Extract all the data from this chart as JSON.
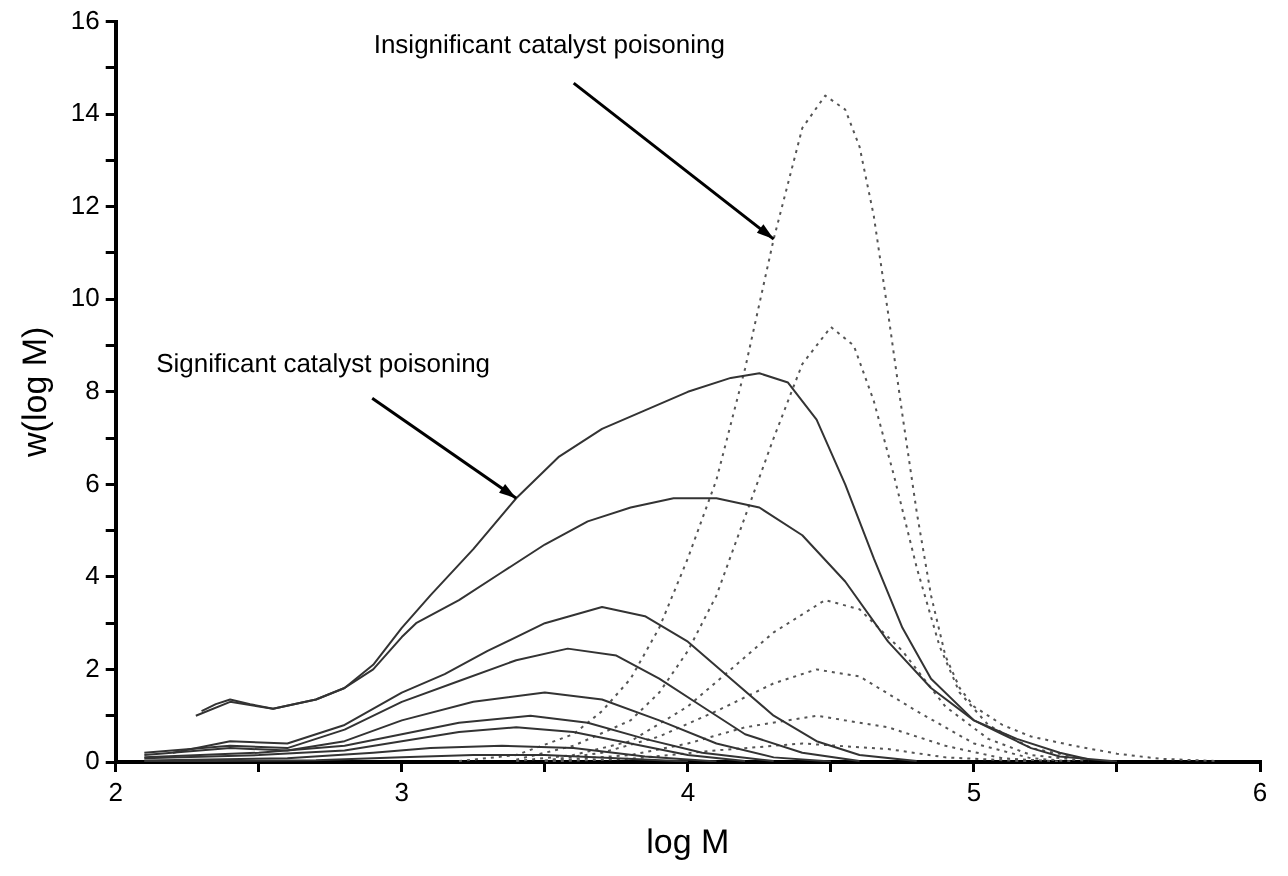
{
  "chart_data": {
    "type": "line",
    "xlabel": "log M",
    "ylabel": "w(log M)",
    "xlim": [
      2,
      6
    ],
    "xticks": [
      2,
      {
        "value": 2.5,
        "label": null
      },
      3,
      {
        "value": 3.5,
        "label": null
      },
      4,
      {
        "value": 4.5,
        "label": null
      },
      5,
      {
        "value": 5.5,
        "label": null
      },
      6
    ],
    "ylim": [
      0,
      16
    ],
    "yticks": [
      0,
      {
        "value": 1,
        "label": null
      },
      2,
      {
        "value": 3,
        "label": null
      },
      4,
      {
        "value": 5,
        "label": null
      },
      6,
      {
        "value": 7,
        "label": null
      },
      8,
      {
        "value": 9,
        "label": null
      },
      10,
      {
        "value": 11,
        "label": null
      },
      12,
      {
        "value": 13,
        "label": null
      },
      14,
      {
        "value": 15,
        "label": null
      },
      16
    ],
    "grid": false,
    "legend": false,
    "marker": "none",
    "annotations": [
      {
        "text": "Insignificant catalyst poisoning",
        "x": 4.3,
        "y": 11.3
      },
      {
        "text": "Significant catalyst poisoning",
        "x": 3.4,
        "y": 5.7
      }
    ],
    "series": [
      {
        "color": "#333333",
        "line_style": "solid",
        "x": [
          2.3,
          2.35,
          2.4,
          2.47,
          2.55,
          2.7,
          2.8,
          2.9,
          3.0,
          3.1,
          3.25,
          3.4,
          3.55,
          3.7,
          3.85,
          4.0,
          4.15,
          4.25,
          4.35,
          4.45,
          4.55,
          4.65,
          4.75,
          4.85,
          5.0,
          5.1,
          5.2,
          5.3,
          5.5
        ],
        "values": [
          1.1,
          1.25,
          1.35,
          1.25,
          1.15,
          1.35,
          1.6,
          2.1,
          2.9,
          3.6,
          4.6,
          5.7,
          6.6,
          7.2,
          7.6,
          8.0,
          8.3,
          8.4,
          8.2,
          7.4,
          6.0,
          4.4,
          2.9,
          1.8,
          0.9,
          0.6,
          0.3,
          0.12,
          0.01
        ]
      },
      {
        "color": "#333333",
        "line_style": "solid",
        "x": [
          2.28,
          2.4,
          2.55,
          2.7,
          2.8,
          2.9,
          3.0,
          3.05,
          3.2,
          3.35,
          3.5,
          3.65,
          3.8,
          3.95,
          4.1,
          4.25,
          4.4,
          4.55,
          4.7,
          4.85,
          5.0,
          5.15,
          5.3,
          5.4
        ],
        "values": [
          1.0,
          1.3,
          1.15,
          1.35,
          1.6,
          2.0,
          2.7,
          3.0,
          3.5,
          4.1,
          4.7,
          5.2,
          5.5,
          5.7,
          5.7,
          5.5,
          4.9,
          3.9,
          2.6,
          1.6,
          0.9,
          0.5,
          0.2,
          0.06
        ]
      },
      {
        "color": "#333333",
        "line_style": "solid",
        "x": [
          2.2,
          2.4,
          2.6,
          2.8,
          3.0,
          3.15,
          3.3,
          3.5,
          3.7,
          3.85,
          4.0,
          4.15,
          4.3,
          4.45,
          4.6,
          4.8
        ],
        "values": [
          0.2,
          0.45,
          0.4,
          0.8,
          1.5,
          1.9,
          2.4,
          3.0,
          3.35,
          3.15,
          2.6,
          1.8,
          1.0,
          0.45,
          0.15,
          0.02
        ]
      },
      {
        "color": "#333333",
        "line_style": "solid",
        "x": [
          2.1,
          2.4,
          2.6,
          2.8,
          3.0,
          3.2,
          3.4,
          3.58,
          3.75,
          3.9,
          4.05,
          4.2,
          4.4,
          4.6
        ],
        "values": [
          0.2,
          0.35,
          0.3,
          0.7,
          1.3,
          1.75,
          2.2,
          2.45,
          2.3,
          1.8,
          1.2,
          0.6,
          0.2,
          0.02
        ]
      },
      {
        "color": "#333333",
        "line_style": "solid",
        "x": [
          2.1,
          2.4,
          2.6,
          2.8,
          3.0,
          3.25,
          3.5,
          3.7,
          3.9,
          4.1,
          4.3,
          4.5
        ],
        "values": [
          0.15,
          0.3,
          0.25,
          0.45,
          0.9,
          1.3,
          1.5,
          1.35,
          0.9,
          0.4,
          0.1,
          0.01
        ]
      },
      {
        "color": "#333333",
        "line_style": "solid",
        "x": [
          2.1,
          2.5,
          2.8,
          3.0,
          3.2,
          3.45,
          3.65,
          3.85,
          4.05,
          4.3
        ],
        "values": [
          0.1,
          0.2,
          0.35,
          0.6,
          0.85,
          1.0,
          0.85,
          0.5,
          0.2,
          0.02
        ]
      },
      {
        "color": "#333333",
        "line_style": "solid",
        "x": [
          2.1,
          2.5,
          2.8,
          3.0,
          3.2,
          3.4,
          3.6,
          3.8,
          4.0,
          4.2
        ],
        "values": [
          0.08,
          0.15,
          0.25,
          0.45,
          0.65,
          0.75,
          0.65,
          0.4,
          0.15,
          0.02
        ]
      },
      {
        "color": "#333333",
        "line_style": "solid",
        "x": [
          2.1,
          2.6,
          2.9,
          3.1,
          3.35,
          3.6,
          3.85,
          4.1
        ],
        "values": [
          0.03,
          0.08,
          0.2,
          0.3,
          0.35,
          0.3,
          0.12,
          0.01
        ]
      },
      {
        "color": "#333333",
        "line_style": "solid",
        "x": [
          2.1,
          2.7,
          3.0,
          3.25,
          3.5,
          3.75,
          4.0
        ],
        "values": [
          0.01,
          0.04,
          0.1,
          0.15,
          0.15,
          0.08,
          0.01
        ]
      },
      {
        "color": "#555555",
        "line_style": "dotted",
        "x": [
          3.2,
          3.4,
          3.6,
          3.7,
          3.8,
          3.9,
          4.0,
          4.1,
          4.2,
          4.3,
          4.4,
          4.48,
          4.55,
          4.6,
          4.65,
          4.7,
          4.75,
          4.8,
          4.85,
          4.9,
          4.95,
          5.0,
          5.1,
          5.2,
          5.35,
          5.5,
          5.65,
          5.85
        ],
        "values": [
          0.02,
          0.15,
          0.6,
          1.1,
          1.8,
          2.9,
          4.4,
          6.1,
          8.5,
          11.3,
          13.7,
          14.4,
          14.1,
          13.3,
          11.8,
          9.7,
          7.5,
          5.4,
          3.6,
          2.3,
          1.6,
          1.2,
          0.8,
          0.55,
          0.35,
          0.18,
          0.07,
          0.02
        ]
      },
      {
        "color": "#555555",
        "line_style": "dotted",
        "x": [
          3.4,
          3.6,
          3.8,
          3.9,
          4.0,
          4.1,
          4.2,
          4.3,
          4.4,
          4.5,
          4.58,
          4.65,
          4.72,
          4.8,
          4.88,
          4.95,
          5.05,
          5.2,
          5.4
        ],
        "values": [
          0.05,
          0.35,
          0.9,
          1.5,
          2.4,
          3.6,
          5.3,
          7.0,
          8.6,
          9.4,
          9.0,
          7.8,
          6.2,
          4.2,
          2.5,
          1.5,
          0.8,
          0.3,
          0.05
        ]
      },
      {
        "color": "#555555",
        "line_style": "dotted",
        "x": [
          3.4,
          3.6,
          3.8,
          4.0,
          4.15,
          4.3,
          4.48,
          4.6,
          4.75,
          4.9,
          5.05,
          5.2,
          5.4
        ],
        "values": [
          0.02,
          0.15,
          0.45,
          1.2,
          2.0,
          2.8,
          3.5,
          3.3,
          2.4,
          1.2,
          0.5,
          0.15,
          0.02
        ]
      },
      {
        "color": "#555555",
        "line_style": "dotted",
        "x": [
          3.5,
          3.7,
          3.9,
          4.1,
          4.3,
          4.45,
          4.6,
          4.8,
          5.0,
          5.2,
          5.35
        ],
        "values": [
          0.03,
          0.2,
          0.55,
          1.1,
          1.7,
          2.0,
          1.85,
          1.1,
          0.4,
          0.08,
          0.01
        ]
      },
      {
        "color": "#555555",
        "line_style": "dotted",
        "x": [
          3.5,
          3.8,
          4.0,
          4.2,
          4.45,
          4.7,
          4.9,
          5.1,
          5.3
        ],
        "values": [
          0.02,
          0.15,
          0.4,
          0.75,
          1.0,
          0.75,
          0.35,
          0.08,
          0.01
        ]
      },
      {
        "color": "#555555",
        "line_style": "dotted",
        "x": [
          3.5,
          3.8,
          4.1,
          4.4,
          4.7,
          4.9,
          5.2
        ],
        "values": [
          0.01,
          0.07,
          0.25,
          0.4,
          0.28,
          0.1,
          0.01
        ]
      }
    ]
  }
}
